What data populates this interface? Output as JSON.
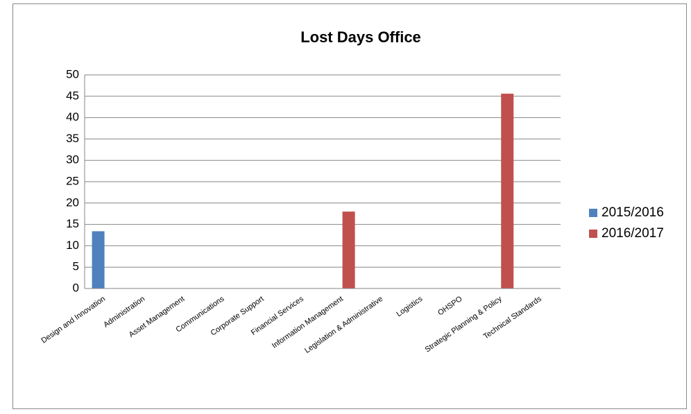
{
  "chart_data": {
    "type": "bar",
    "title": "Lost Days Office",
    "categories": [
      "Design and Innovation",
      "Administration",
      "Asset Management",
      "Communications",
      "Corporate Support",
      "Financial Services",
      "Information Management",
      "Legislation & Administrative",
      "Logistics",
      "OHSPO",
      "Strategic Planning & Policy",
      "Technical Standards"
    ],
    "series": [
      {
        "name": "2015/2016",
        "color": "#4f81bd",
        "values": [
          13.4,
          0,
          0,
          0,
          0,
          0,
          0,
          0,
          0,
          0,
          0,
          0
        ]
      },
      {
        "name": "2016/2017",
        "color": "#c0504d",
        "values": [
          0,
          0,
          0,
          0,
          0,
          0,
          18,
          0,
          0,
          0,
          45.6,
          0
        ]
      }
    ],
    "ylim": [
      0,
      50
    ],
    "yticks": [
      0,
      5,
      10,
      15,
      20,
      25,
      30,
      35,
      40,
      45,
      50
    ],
    "grid": true,
    "legend": "right"
  }
}
